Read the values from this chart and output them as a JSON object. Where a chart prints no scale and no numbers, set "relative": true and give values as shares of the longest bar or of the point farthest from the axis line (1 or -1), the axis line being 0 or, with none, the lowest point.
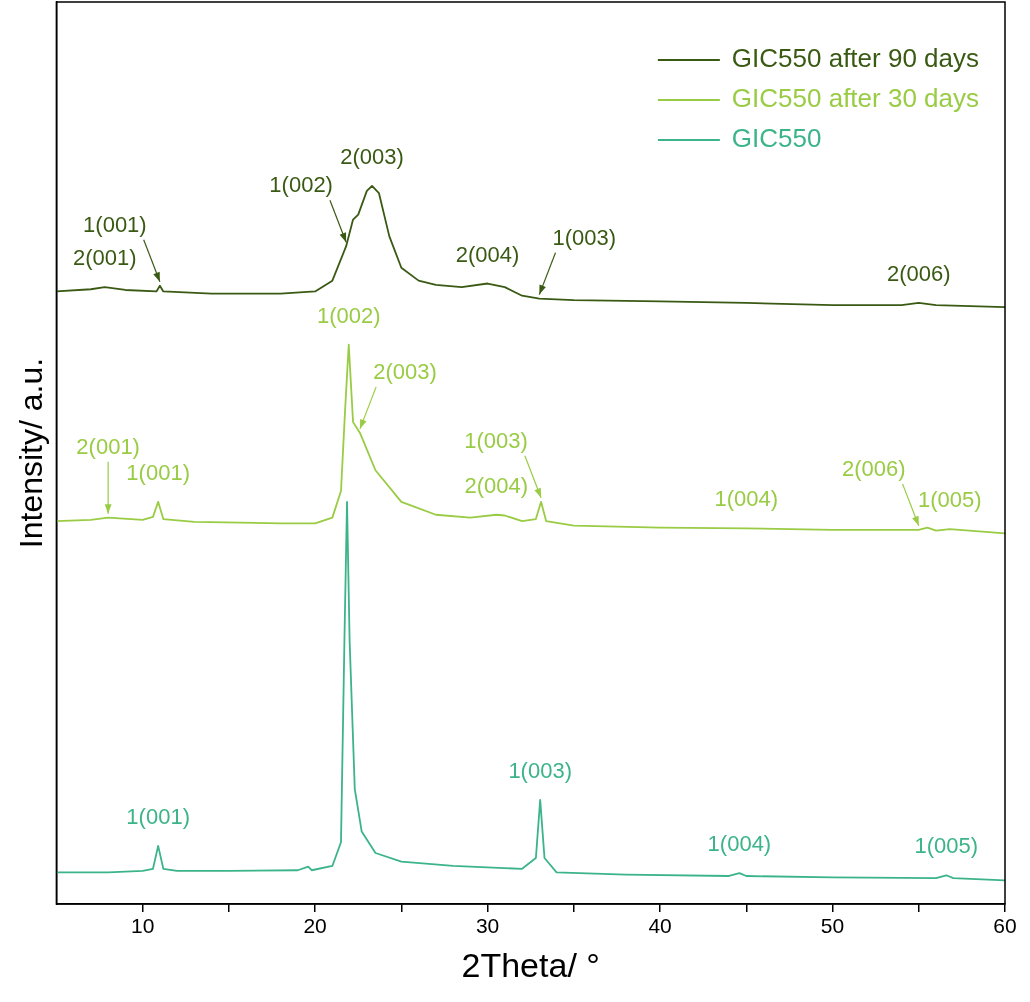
{
  "chart_data": {
    "type": "line",
    "relative": true,
    "xlabel": "2Theta/ °",
    "ylabel": "Intensity/ a.u.",
    "xlim": [
      5,
      60
    ],
    "xticks": [
      10,
      {
        "value": 15,
        "label": null
      },
      20,
      {
        "value": 25,
        "label": null
      },
      30,
      {
        "value": 35,
        "label": null
      },
      40,
      {
        "value": 45,
        "label": null
      },
      50,
      {
        "value": 55,
        "label": null
      },
      60
    ],
    "grid": false,
    "legend": "top right",
    "marker": "none",
    "line_style": "solid",
    "series": [
      {
        "name": "GIC550 after 90 days",
        "color": "#3a5a14",
        "x": [
          5,
          7,
          7.8,
          9,
          10.8,
          11,
          11.2,
          14,
          18,
          20,
          21,
          21.8,
          22.2,
          22.5,
          23,
          23.3,
          23.7,
          24.3,
          25,
          26,
          27,
          28.5,
          30,
          31,
          32,
          33,
          35,
          40,
          45,
          50,
          54,
          55,
          56,
          60
        ],
        "values": [
          0.853,
          0.856,
          0.859,
          0.855,
          0.853,
          0.861,
          0.853,
          0.85,
          0.85,
          0.853,
          0.868,
          0.916,
          0.953,
          0.96,
          0.993,
          1,
          0.99,
          0.93,
          0.886,
          0.868,
          0.862,
          0.859,
          0.864,
          0.859,
          0.847,
          0.843,
          0.841,
          0.839,
          0.837,
          0.834,
          0.834,
          0.837,
          0.834,
          0.831
        ]
      },
      {
        "name": "GIC550 after 30 days",
        "color": "#99cc44",
        "x": [
          5,
          7,
          8,
          10,
          10.6,
          10.9,
          11.2,
          13,
          18,
          20,
          21,
          21.5,
          21.75,
          21.95,
          22.2,
          22.6,
          23.5,
          25,
          27,
          29,
          30.5,
          31,
          32,
          32.8,
          33.1,
          33.4,
          35,
          40,
          45,
          50,
          55,
          55.5,
          56,
          56.8,
          60
        ],
        "values": [
          0.533,
          0.535,
          0.538,
          0.535,
          0.539,
          0.56,
          0.536,
          0.532,
          0.53,
          0.53,
          0.538,
          0.575,
          0.693,
          0.779,
          0.671,
          0.656,
          0.604,
          0.56,
          0.542,
          0.538,
          0.542,
          0.541,
          0.533,
          0.536,
          0.56,
          0.533,
          0.527,
          0.524,
          0.523,
          0.521,
          0.521,
          0.524,
          0.52,
          0.522,
          0.516
        ]
      },
      {
        "name": "GIC550",
        "color": "#3cb489",
        "x": [
          5,
          8,
          10,
          10.6,
          10.9,
          11.2,
          12,
          15,
          19,
          19.6,
          19.8,
          21,
          21.5,
          21.7,
          21.85,
          22,
          22.3,
          22.7,
          23.5,
          25,
          28,
          32,
          32.8,
          33.05,
          33.3,
          34,
          38,
          44,
          44.6,
          45,
          50,
          56,
          56.6,
          57,
          60
        ],
        "values": [
          0.044,
          0.044,
          0.046,
          0.049,
          0.081,
          0.049,
          0.046,
          0.046,
          0.047,
          0.052,
          0.047,
          0.053,
          0.086,
          0.367,
          0.56,
          0.367,
          0.16,
          0.101,
          0.071,
          0.059,
          0.053,
          0.049,
          0.064,
          0.145,
          0.064,
          0.044,
          0.041,
          0.039,
          0.043,
          0.039,
          0.037,
          0.036,
          0.04,
          0.036,
          0.033
        ]
      }
    ],
    "annotations": [
      {
        "text": "2(003)",
        "x": 23.3,
        "y": 1
      },
      {
        "text": "1(002)",
        "x": 21.8,
        "y": 0.916
      },
      {
        "text": "2(001)",
        "x": 7.8,
        "y": 0.859
      },
      {
        "text": "1(001)",
        "x": 11,
        "y": 0.861
      },
      {
        "text": "2(004)",
        "x": 30,
        "y": 0.864
      },
      {
        "text": "1(003)",
        "x": 33,
        "y": 0.843
      },
      {
        "text": "2(006)",
        "x": 55,
        "y": 0.837
      },
      {
        "text": "1(002)",
        "x": 21.95,
        "y": 0.779
      },
      {
        "text": "2(003)",
        "x": 22.6,
        "y": 0.656
      },
      {
        "text": "1(001)",
        "x": 10.9,
        "y": 0.56
      },
      {
        "text": "2(001)",
        "x": 8,
        "y": 0.538
      },
      {
        "text": "2(004)",
        "x": 30.5,
        "y": 0.542
      },
      {
        "text": "1(003)",
        "x": 33.1,
        "y": 0.56
      },
      {
        "text": "1(004)",
        "x": 45,
        "y": 0.523
      },
      {
        "text": "1(005)",
        "x": 56.8,
        "y": 0.522
      },
      {
        "text": "2(006)",
        "x": 55,
        "y": 0.521
      },
      {
        "text": "1(001)",
        "x": 10.9,
        "y": 0.081
      },
      {
        "text": "1(003)",
        "x": 33.05,
        "y": 0.145
      },
      {
        "text": "1(004)",
        "x": 44.6,
        "y": 0.043
      },
      {
        "text": "1(005)",
        "x": 56.6,
        "y": 0.04
      }
    ]
  }
}
